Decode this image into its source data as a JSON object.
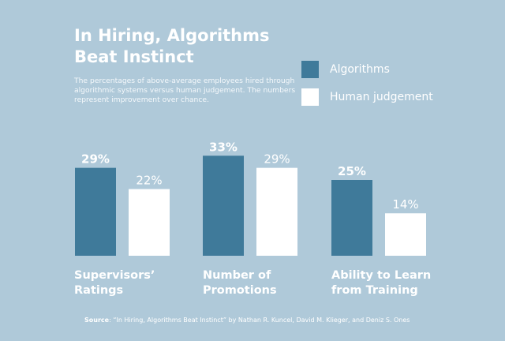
{
  "title": "In Hiring, Algorithms Beat Instinct",
  "subtitle": "The percentages of above-average employees hired through algorithmic systems versus human judgement. The numbers represent improvement over chance.",
  "source_label": "Source",
  "source_text": ": “In Hiring, Algorithms Beat Instinct” by Nathan R. Kuncel, David M. Klieger, and Deniz S. Ones",
  "chart_data": {
    "type": "bar",
    "title": "In Hiring, Algorithms Beat Instinct",
    "categories": [
      "Supervisors’\nRatings",
      "Number of\nPromotions",
      "Ability to Learn\nfrom Training"
    ],
    "series": [
      {
        "name": "Algorithms",
        "values": [
          29,
          33,
          25
        ],
        "labels": [
          "29%",
          "33%",
          "25%"
        ],
        "color": "#3f7a9a"
      },
      {
        "name": "Human judgement",
        "values": [
          22,
          29,
          14
        ],
        "labels": [
          "22%",
          "29%",
          "14%"
        ],
        "color": "#ffffff"
      }
    ],
    "ylim": [
      0,
      35
    ],
    "grid": false,
    "legend": "top-right",
    "background": "#afc9d9"
  }
}
